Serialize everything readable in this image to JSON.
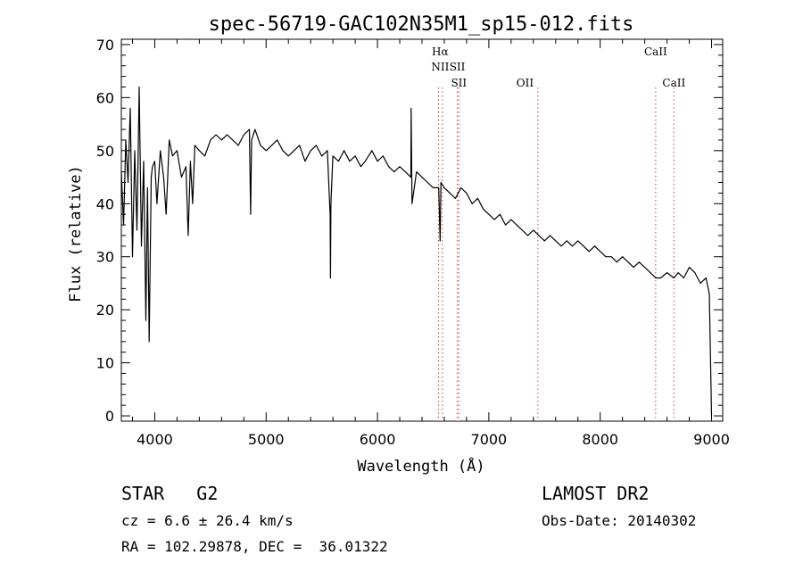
{
  "chart_data": {
    "type": "line",
    "title": "spec-56719-GAC102N35M1_sp15-012.fits",
    "xlabel": "Wavelength (Å)",
    "ylabel": "Flux (relative)",
    "xlim": [
      3700,
      9100
    ],
    "ylim": [
      -1,
      71
    ],
    "xticks": [
      4000,
      5000,
      6000,
      7000,
      8000,
      9000
    ],
    "yticks": [
      0,
      10,
      20,
      30,
      40,
      50,
      60,
      70
    ],
    "grid": false,
    "line_color": "#000000",
    "marker_color": "#d04040",
    "series": [
      {
        "x": [
          3700,
          3720,
          3740,
          3760,
          3780,
          3800,
          3820,
          3840,
          3860,
          3880,
          3900,
          3920,
          3935,
          3950,
          3968,
          3980,
          4000,
          4020,
          4050,
          4080,
          4102,
          4130,
          4160,
          4200,
          4240,
          4280,
          4300,
          4320,
          4340,
          4360,
          4400,
          4450,
          4500,
          4550,
          4600,
          4650,
          4700,
          4750,
          4800,
          4850,
          4861,
          4870,
          4900,
          4950,
          5000,
          5050,
          5100,
          5150,
          5200,
          5250,
          5300,
          5350,
          5400,
          5450,
          5500,
          5550,
          5575,
          5578,
          5582,
          5600,
          5650,
          5700,
          5750,
          5800,
          5850,
          5890,
          5950,
          6000,
          6050,
          6100,
          6150,
          6200,
          6250,
          6300,
          6302,
          6310,
          6350,
          6400,
          6450,
          6500,
          6550,
          6563,
          6570,
          6600,
          6650,
          6700,
          6750,
          6800,
          6850,
          6900,
          6950,
          7000,
          7050,
          7100,
          7150,
          7200,
          7250,
          7300,
          7350,
          7400,
          7450,
          7500,
          7550,
          7600,
          7650,
          7700,
          7750,
          7800,
          7850,
          7900,
          7950,
          8000,
          8050,
          8100,
          8150,
          8200,
          8250,
          8300,
          8350,
          8400,
          8450,
          8498,
          8542,
          8600,
          8662,
          8700,
          8750,
          8800,
          8850,
          8900,
          8950,
          8980,
          9000
        ],
        "y": [
          46,
          36,
          52,
          44,
          58,
          30,
          50,
          35,
          62,
          32,
          48,
          18,
          43,
          14,
          45,
          47,
          48,
          40,
          50,
          45,
          38,
          52,
          49,
          50,
          45,
          47,
          34,
          48,
          40,
          51,
          50,
          49,
          52,
          53,
          52,
          53,
          52,
          51,
          53,
          54,
          38,
          52,
          54,
          51,
          50,
          51,
          52,
          50,
          49,
          50,
          51,
          48,
          50,
          51,
          49,
          50,
          38,
          26,
          40,
          49,
          48,
          50,
          48,
          49,
          47,
          48,
          50,
          48,
          49,
          47,
          46,
          47,
          46,
          45,
          58,
          40,
          46,
          45,
          44,
          43,
          43,
          33,
          44,
          43,
          42,
          41,
          43,
          42,
          40,
          41,
          39,
          38,
          37,
          38,
          36,
          37,
          36,
          35,
          34,
          35,
          34,
          33,
          34,
          33,
          32,
          33,
          32,
          33,
          32,
          31,
          32,
          31,
          30,
          30,
          29,
          30,
          29,
          28,
          29,
          28,
          27,
          26,
          26,
          27,
          26,
          27,
          26,
          28,
          27,
          25,
          26,
          23,
          0
        ]
      }
    ],
    "annotations": [
      {
        "label": "Hα",
        "x": 6563,
        "row": 1
      },
      {
        "label": "NII",
        "x": 6563,
        "row": 2
      },
      {
        "label": "SII",
        "x": 6717,
        "row": 2
      },
      {
        "label": "SII",
        "x": 6731,
        "row": 3
      },
      {
        "label": "OII",
        "x": 7325,
        "row": 3
      },
      {
        "label": "CaII",
        "x": 8498,
        "row": 1
      },
      {
        "label": "CaII",
        "x": 8662,
        "row": 3
      }
    ],
    "marker_lines": [
      6548,
      6583,
      6717,
      6731,
      7440,
      8498,
      8662
    ]
  },
  "info": {
    "class_line": "STAR   G2",
    "cz_line": "cz = 6.6 ± 26.4 km/s",
    "radec_line": "RA = 102.29878, DEC =  36.01322",
    "survey": "LAMOST DR2",
    "obs_date": "Obs-Date: 20140302"
  }
}
